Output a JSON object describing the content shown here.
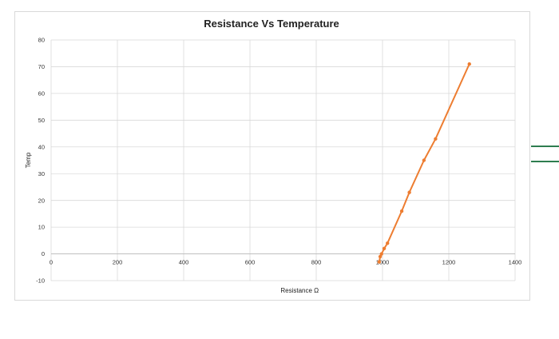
{
  "chart_data": {
    "type": "scatter",
    "title": "Resistance Vs Temperature",
    "xlabel": "Resistance Ω",
    "ylabel": "Temp",
    "xlim": [
      0,
      1400
    ],
    "ylim": [
      -10,
      80
    ],
    "xticks": [
      0,
      200,
      400,
      600,
      800,
      1000,
      1200,
      1400
    ],
    "yticks": [
      -10,
      0,
      10,
      20,
      30,
      40,
      50,
      60,
      70,
      80
    ],
    "grid": true,
    "line_color": "#ED7D31",
    "series": [
      {
        "x": [
          990,
          993,
          997,
          1005,
          1015,
          1058,
          1081,
          1125,
          1160,
          1262
        ],
        "y": [
          -3,
          -1,
          0,
          2,
          4,
          16,
          23,
          35,
          43,
          71
        ]
      }
    ]
  },
  "side_lines": {
    "color": "#2E7D4F"
  }
}
